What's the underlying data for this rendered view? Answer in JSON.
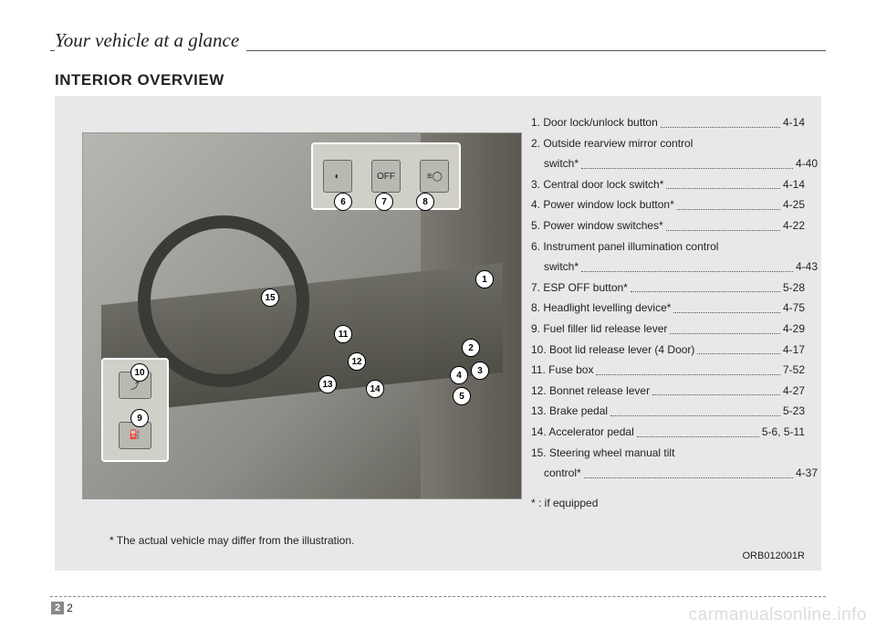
{
  "header": {
    "section": "Your vehicle at a glance"
  },
  "heading": "INTERIOR OVERVIEW",
  "caption": "* The actual vehicle may differ from the illustration.",
  "figcode": "ORB012001R",
  "footnote": "* : if equipped",
  "footer": {
    "chapter": "2",
    "page": "2"
  },
  "watermark": "carmanualsonline.info",
  "markers": {
    "top": [
      "6",
      "7",
      "8"
    ],
    "left": [
      "10",
      "9"
    ],
    "door": [
      "1",
      "2",
      "3",
      "4",
      "5"
    ],
    "dash": [
      "15",
      "11",
      "12",
      "13",
      "14"
    ]
  },
  "list": [
    {
      "label": "1. Door lock/unlock button",
      "page": "4-14"
    },
    {
      "label": "2. Outside rearview mirror control",
      "sub": "switch*",
      "page": "4-40"
    },
    {
      "label": "3. Central door lock switch*",
      "page": "4-14"
    },
    {
      "label": "4. Power window lock button*",
      "page": "4-25"
    },
    {
      "label": "5. Power window switches*",
      "page": "4-22"
    },
    {
      "label": "6. Instrument panel illumination control",
      "sub": "switch*",
      "page": "4-43"
    },
    {
      "label": "7. ESP OFF button*",
      "page": "5-28"
    },
    {
      "label": "8. Headlight levelling device*",
      "page": "4-75"
    },
    {
      "label": "9. Fuel filler lid release lever",
      "page": "4-29"
    },
    {
      "label": "10. Boot lid release lever (4 Door)",
      "page": "4-17"
    },
    {
      "label": "11. Fuse box",
      "page": "7-52"
    },
    {
      "label": "12. Bonnet release lever",
      "page": "4-27"
    },
    {
      "label": "13. Brake pedal",
      "page": "5-23"
    },
    {
      "label": "14. Accelerator pedal",
      "page": "5-6, 5-11"
    },
    {
      "label": "15. Steering wheel manual tilt",
      "sub": "control*",
      "page": "4-37"
    }
  ]
}
